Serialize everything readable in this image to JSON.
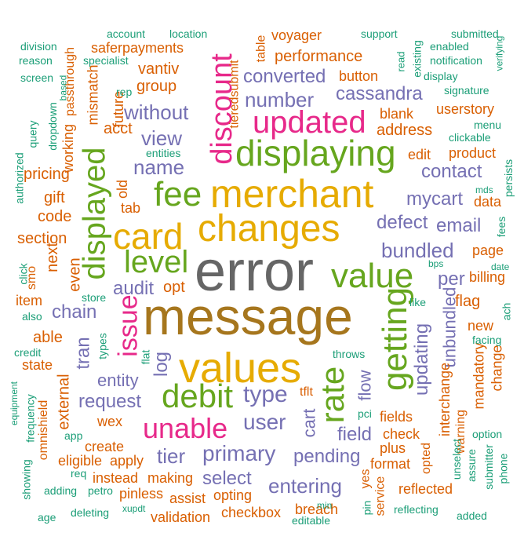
{
  "palette": {
    "teal": "#1b9e77",
    "orange": "#d95f02",
    "purple": "#7570b3",
    "pink": "#e7298a",
    "green": "#66a61e",
    "mustard": "#e6ab02",
    "brown": "#a6761d",
    "gray": "#666666"
  },
  "words": [
    {
      "text": "error",
      "color": "gray"
    },
    {
      "text": "message",
      "color": "brown"
    },
    {
      "text": "merchant",
      "color": "mustard"
    },
    {
      "text": "changes",
      "color": "mustard"
    },
    {
      "text": "values",
      "color": "mustard"
    },
    {
      "text": "card",
      "color": "mustard"
    },
    {
      "text": "displaying",
      "color": "green"
    },
    {
      "text": "fee",
      "color": "green"
    },
    {
      "text": "value",
      "color": "green"
    },
    {
      "text": "level",
      "color": "green"
    },
    {
      "text": "debit",
      "color": "green"
    },
    {
      "text": "updated",
      "color": "pink"
    },
    {
      "text": "unable",
      "color": "pink"
    },
    {
      "text": "discount",
      "color": "pink"
    },
    {
      "text": "issue",
      "color": "pink"
    },
    {
      "text": "displayed",
      "color": "green"
    },
    {
      "text": "getting",
      "color": "green"
    },
    {
      "text": "rate",
      "color": "green"
    },
    {
      "text": "view",
      "color": "purple"
    },
    {
      "text": "name",
      "color": "purple"
    },
    {
      "text": "without",
      "color": "purple"
    },
    {
      "text": "number",
      "color": "purple"
    },
    {
      "text": "converted",
      "color": "purple"
    },
    {
      "text": "cassandra",
      "color": "purple"
    },
    {
      "text": "contact",
      "color": "purple"
    },
    {
      "text": "mycart",
      "color": "purple"
    },
    {
      "text": "defect",
      "color": "purple"
    },
    {
      "text": "email",
      "color": "purple"
    },
    {
      "text": "bundled",
      "color": "purple"
    },
    {
      "text": "per",
      "color": "purple"
    },
    {
      "text": "audit",
      "color": "purple"
    },
    {
      "text": "chain",
      "color": "purple"
    },
    {
      "text": "entity",
      "color": "purple"
    },
    {
      "text": "request",
      "color": "purple"
    },
    {
      "text": "type",
      "color": "purple"
    },
    {
      "text": "user",
      "color": "purple"
    },
    {
      "text": "primary",
      "color": "purple"
    },
    {
      "text": "tier",
      "color": "purple"
    },
    {
      "text": "select",
      "color": "purple"
    },
    {
      "text": "entering",
      "color": "purple"
    },
    {
      "text": "pending",
      "color": "purple"
    },
    {
      "text": "field",
      "color": "purple"
    },
    {
      "text": "log",
      "color": "purple"
    },
    {
      "text": "tran",
      "color": "purple"
    },
    {
      "text": "flow",
      "color": "purple"
    },
    {
      "text": "cart",
      "color": "purple"
    },
    {
      "text": "updating",
      "color": "purple"
    },
    {
      "text": "unbundled",
      "color": "purple"
    },
    {
      "text": "performance",
      "color": "orange"
    },
    {
      "text": "voyager",
      "color": "orange"
    },
    {
      "text": "saferpayments",
      "color": "orange"
    },
    {
      "text": "vantiv",
      "color": "orange"
    },
    {
      "text": "group",
      "color": "orange"
    },
    {
      "text": "acct",
      "color": "orange"
    },
    {
      "text": "button",
      "color": "orange"
    },
    {
      "text": "blank",
      "color": "orange"
    },
    {
      "text": "address",
      "color": "orange"
    },
    {
      "text": "userstory",
      "color": "orange"
    },
    {
      "text": "edit",
      "color": "orange"
    },
    {
      "text": "product",
      "color": "orange"
    },
    {
      "text": "pricing",
      "color": "orange"
    },
    {
      "text": "gift",
      "color": "orange"
    },
    {
      "text": "tab",
      "color": "orange"
    },
    {
      "text": "code",
      "color": "orange"
    },
    {
      "text": "section",
      "color": "orange"
    },
    {
      "text": "next",
      "color": "orange"
    },
    {
      "text": "even",
      "color": "orange"
    },
    {
      "text": "opt",
      "color": "orange"
    },
    {
      "text": "item",
      "color": "orange"
    },
    {
      "text": "able",
      "color": "orange"
    },
    {
      "text": "state",
      "color": "orange"
    },
    {
      "text": "external",
      "color": "orange"
    },
    {
      "text": "wex",
      "color": "orange"
    },
    {
      "text": "create",
      "color": "orange"
    },
    {
      "text": "eligible",
      "color": "orange"
    },
    {
      "text": "apply",
      "color": "orange"
    },
    {
      "text": "instead",
      "color": "orange"
    },
    {
      "text": "making",
      "color": "orange"
    },
    {
      "text": "pinless",
      "color": "orange"
    },
    {
      "text": "assist",
      "color": "orange"
    },
    {
      "text": "opting",
      "color": "orange"
    },
    {
      "text": "validation",
      "color": "orange"
    },
    {
      "text": "checkbox",
      "color": "orange"
    },
    {
      "text": "breach",
      "color": "orange"
    },
    {
      "text": "reflected",
      "color": "orange"
    },
    {
      "text": "format",
      "color": "orange"
    },
    {
      "text": "plus",
      "color": "orange"
    },
    {
      "text": "check",
      "color": "orange"
    },
    {
      "text": "fields",
      "color": "orange"
    },
    {
      "text": "flag",
      "color": "orange"
    },
    {
      "text": "billing",
      "color": "orange"
    },
    {
      "text": "page",
      "color": "orange"
    },
    {
      "text": "data",
      "color": "orange"
    },
    {
      "text": "new",
      "color": "orange"
    },
    {
      "text": "change",
      "color": "orange"
    },
    {
      "text": "mandatory",
      "color": "orange"
    },
    {
      "text": "interchange",
      "color": "orange"
    },
    {
      "text": "warning",
      "color": "orange"
    },
    {
      "text": "opted",
      "color": "orange"
    },
    {
      "text": "service",
      "color": "orange"
    },
    {
      "text": "yes",
      "color": "orange"
    },
    {
      "text": "tflt",
      "color": "orange"
    },
    {
      "text": "old",
      "color": "orange"
    },
    {
      "text": "working",
      "color": "orange"
    },
    {
      "text": "mismatch",
      "color": "orange"
    },
    {
      "text": "future",
      "color": "orange"
    },
    {
      "text": "passthrough",
      "color": "orange"
    },
    {
      "text": "tieredsubmit",
      "color": "orange"
    },
    {
      "text": "table",
      "color": "orange"
    },
    {
      "text": "omnishield",
      "color": "orange"
    },
    {
      "text": "smo",
      "color": "orange"
    },
    {
      "text": "account",
      "color": "teal"
    },
    {
      "text": "location",
      "color": "teal"
    },
    {
      "text": "support",
      "color": "teal"
    },
    {
      "text": "submitted",
      "color": "teal"
    },
    {
      "text": "division",
      "color": "teal"
    },
    {
      "text": "reason",
      "color": "teal"
    },
    {
      "text": "screen",
      "color": "teal"
    },
    {
      "text": "specialist",
      "color": "teal"
    },
    {
      "text": "rep",
      "color": "teal"
    },
    {
      "text": "based",
      "color": "teal"
    },
    {
      "text": "enabled",
      "color": "teal"
    },
    {
      "text": "notification",
      "color": "teal"
    },
    {
      "text": "display",
      "color": "teal"
    },
    {
      "text": "signature",
      "color": "teal"
    },
    {
      "text": "read",
      "color": "teal"
    },
    {
      "text": "existing",
      "color": "teal"
    },
    {
      "text": "verifying",
      "color": "teal"
    },
    {
      "text": "menu",
      "color": "teal"
    },
    {
      "text": "clickable",
      "color": "teal"
    },
    {
      "text": "entities",
      "color": "teal"
    },
    {
      "text": "query",
      "color": "teal"
    },
    {
      "text": "dropdown",
      "color": "teal"
    },
    {
      "text": "authorized",
      "color": "teal"
    },
    {
      "text": "mds",
      "color": "teal"
    },
    {
      "text": "persists",
      "color": "teal"
    },
    {
      "text": "fees",
      "color": "teal"
    },
    {
      "text": "bps",
      "color": "teal"
    },
    {
      "text": "date",
      "color": "teal"
    },
    {
      "text": "click",
      "color": "teal"
    },
    {
      "text": "store",
      "color": "teal"
    },
    {
      "text": "like",
      "color": "teal"
    },
    {
      "text": "also",
      "color": "teal"
    },
    {
      "text": "credit",
      "color": "teal"
    },
    {
      "text": "types",
      "color": "teal"
    },
    {
      "text": "flat",
      "color": "teal"
    },
    {
      "text": "throws",
      "color": "teal"
    },
    {
      "text": "facing",
      "color": "teal"
    },
    {
      "text": "ach",
      "color": "teal"
    },
    {
      "text": "equipment",
      "color": "teal"
    },
    {
      "text": "frequency",
      "color": "teal"
    },
    {
      "text": "pci",
      "color": "teal"
    },
    {
      "text": "app",
      "color": "teal"
    },
    {
      "text": "req",
      "color": "teal"
    },
    {
      "text": "showing",
      "color": "teal"
    },
    {
      "text": "adding",
      "color": "teal"
    },
    {
      "text": "petro",
      "color": "teal"
    },
    {
      "text": "age",
      "color": "teal"
    },
    {
      "text": "deleting",
      "color": "teal"
    },
    {
      "text": "xupdt",
      "color": "teal"
    },
    {
      "text": "editable",
      "color": "teal"
    },
    {
      "text": "min",
      "color": "teal"
    },
    {
      "text": "pin",
      "color": "teal"
    },
    {
      "text": "reflecting",
      "color": "teal"
    },
    {
      "text": "added",
      "color": "teal"
    },
    {
      "text": "option",
      "color": "teal"
    },
    {
      "text": "submitter",
      "color": "teal"
    },
    {
      "text": "phone",
      "color": "teal"
    },
    {
      "text": "assure",
      "color": "teal"
    },
    {
      "text": "unselect",
      "color": "teal"
    }
  ]
}
